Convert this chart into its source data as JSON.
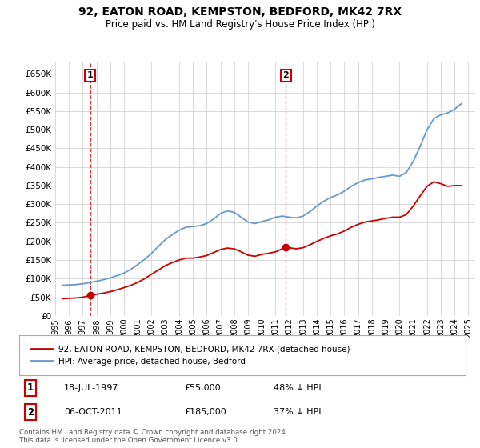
{
  "title": "92, EATON ROAD, KEMPSTON, BEDFORD, MK42 7RX",
  "subtitle": "Price paid vs. HM Land Registry's House Price Index (HPI)",
  "background_color": "#ffffff",
  "grid_color": "#cccccc",
  "sale1_date": "18-JUL-1997",
  "sale1_price": 55000,
  "sale2_date": "06-OCT-2011",
  "sale2_price": 185000,
  "legend_line1": "92, EATON ROAD, KEMPSTON, BEDFORD, MK42 7RX (detached house)",
  "legend_line2": "HPI: Average price, detached house, Bedford",
  "footer": "Contains HM Land Registry data © Crown copyright and database right 2024.\nThis data is licensed under the Open Government Licence v3.0.",
  "hpi_color": "#6699cc",
  "price_color": "#cc0000",
  "marker_color": "#cc0000",
  "sale_line_color": "#cc0000",
  "annotation_box_color": "#cc0000",
  "ylim": [
    0,
    680000
  ],
  "yticks": [
    0,
    50000,
    100000,
    150000,
    200000,
    250000,
    300000,
    350000,
    400000,
    450000,
    500000,
    550000,
    600000,
    650000
  ],
  "hpi_dates": [
    1995.5,
    1996.0,
    1996.5,
    1997.0,
    1997.5,
    1998.0,
    1998.5,
    1999.0,
    1999.5,
    2000.0,
    2000.5,
    2001.0,
    2001.5,
    2002.0,
    2002.5,
    2003.0,
    2003.5,
    2004.0,
    2004.5,
    2005.0,
    2005.5,
    2006.0,
    2006.5,
    2007.0,
    2007.5,
    2008.0,
    2008.5,
    2009.0,
    2009.5,
    2010.0,
    2010.5,
    2011.0,
    2011.5,
    2012.0,
    2012.5,
    2013.0,
    2013.5,
    2014.0,
    2014.5,
    2015.0,
    2015.5,
    2016.0,
    2016.5,
    2017.0,
    2017.5,
    2018.0,
    2018.5,
    2019.0,
    2019.5,
    2020.0,
    2020.5,
    2021.0,
    2021.5,
    2022.0,
    2022.5,
    2023.0,
    2023.5,
    2024.0,
    2024.5
  ],
  "hpi_values": [
    82000,
    83000,
    84000,
    86000,
    89000,
    93000,
    97000,
    102000,
    108000,
    115000,
    125000,
    138000,
    152000,
    168000,
    187000,
    205000,
    218000,
    230000,
    238000,
    240000,
    242000,
    248000,
    260000,
    275000,
    282000,
    278000,
    265000,
    252000,
    248000,
    253000,
    258000,
    265000,
    268000,
    265000,
    263000,
    268000,
    280000,
    295000,
    308000,
    318000,
    325000,
    335000,
    348000,
    358000,
    365000,
    368000,
    372000,
    375000,
    378000,
    375000,
    385000,
    415000,
    455000,
    500000,
    530000,
    540000,
    545000,
    555000,
    570000
  ],
  "price_dates": [
    1995.5,
    1996.0,
    1996.5,
    1997.0,
    1997.58,
    1998.0,
    1998.5,
    1999.0,
    1999.5,
    2000.0,
    2000.5,
    2001.0,
    2001.5,
    2002.0,
    2002.5,
    2003.0,
    2003.5,
    2004.0,
    2004.5,
    2005.0,
    2005.5,
    2006.0,
    2006.5,
    2007.0,
    2007.5,
    2008.0,
    2008.5,
    2009.0,
    2009.5,
    2010.0,
    2010.5,
    2011.0,
    2011.78,
    2012.0,
    2012.5,
    2013.0,
    2013.5,
    2014.0,
    2014.5,
    2015.0,
    2015.5,
    2016.0,
    2016.5,
    2017.0,
    2017.5,
    2018.0,
    2018.5,
    2019.0,
    2019.5,
    2020.0,
    2020.5,
    2021.0,
    2021.5,
    2022.0,
    2022.5,
    2023.0,
    2023.5,
    2024.0,
    2024.5
  ],
  "price_values": [
    46000,
    47000,
    48000,
    50000,
    55000,
    58000,
    61000,
    65000,
    70000,
    76000,
    82000,
    90000,
    100000,
    112000,
    123000,
    135000,
    143000,
    150000,
    155000,
    155000,
    158000,
    162000,
    170000,
    178000,
    182000,
    180000,
    172000,
    163000,
    160000,
    165000,
    168000,
    172000,
    185000,
    183000,
    180000,
    183000,
    191000,
    200000,
    208000,
    215000,
    220000,
    228000,
    238000,
    246000,
    252000,
    255000,
    258000,
    262000,
    265000,
    265000,
    272000,
    295000,
    322000,
    348000,
    360000,
    355000,
    348000,
    350000,
    350000
  ],
  "sale1_x": 1997.54,
  "sale2_x": 2011.76,
  "xlim": [
    1995.0,
    2025.5
  ],
  "xtick_years": [
    1995,
    1996,
    1997,
    1998,
    1999,
    2000,
    2001,
    2002,
    2003,
    2004,
    2005,
    2006,
    2007,
    2008,
    2009,
    2010,
    2011,
    2012,
    2013,
    2014,
    2015,
    2016,
    2017,
    2018,
    2019,
    2020,
    2021,
    2022,
    2023,
    2024,
    2025
  ]
}
